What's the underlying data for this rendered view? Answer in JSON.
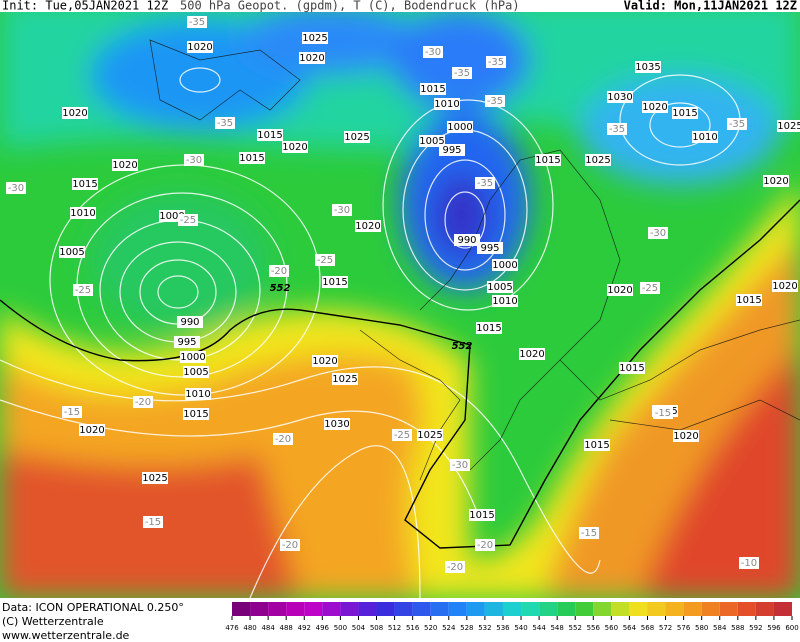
{
  "header": {
    "init": "Init: Tue,05JAN2021 12Z",
    "field": "500 hPa Geopot. (gpdm), T (C), Bodendruck (hPa)",
    "valid": "Valid: Mon,11JAN2021 12Z"
  },
  "footer": {
    "data": "Data: ICON OPERATIONAL 0.250°",
    "copyright": "(C) Wetterzentrale",
    "url": "www.wetterzentrale.de"
  },
  "map": {
    "pressure_labels": [
      "1020",
      "1025",
      "1020",
      "1035",
      "1015",
      "1010",
      "1030",
      "1020",
      "1015",
      "1020",
      "1015",
      "1020",
      "1025",
      "1000",
      "1005",
      "995",
      "1010",
      "1015",
      "1025",
      "1015",
      "1020",
      "1015",
      "1010",
      "1000",
      "1020",
      "990",
      "995",
      "1005",
      "1000",
      "1015",
      "1005",
      "1010",
      "1020",
      "1015",
      "990",
      "1015",
      "995",
      "1000",
      "1020",
      "1005",
      "1020",
      "1025",
      "1010",
      "1015",
      "1015",
      "1015",
      "1020",
      "1030",
      "1025",
      "1015",
      "1020",
      "1025",
      "1015",
      "1020",
      "1025",
      "1020"
    ],
    "temperature_labels": [
      "-35",
      "-30",
      "-35",
      "-35",
      "-35",
      "-35",
      "-35",
      "-35",
      "-30",
      "-30",
      "-35",
      "-30",
      "-25",
      "-30",
      "-20",
      "-25",
      "-25",
      "-25",
      "-20",
      "-15",
      "-20",
      "-25",
      "-30",
      "-15",
      "-20",
      "-20",
      "-20",
      "-15",
      "-10",
      "-15"
    ],
    "contour_labels": [
      "552",
      "552"
    ]
  },
  "colorbar": {
    "ticks": [
      476,
      480,
      484,
      488,
      492,
      496,
      500,
      504,
      508,
      512,
      516,
      520,
      524,
      528,
      532,
      536,
      540,
      544,
      548,
      552,
      556,
      560,
      564,
      568,
      572,
      576,
      580,
      584,
      588,
      592,
      596,
      600
    ]
  }
}
